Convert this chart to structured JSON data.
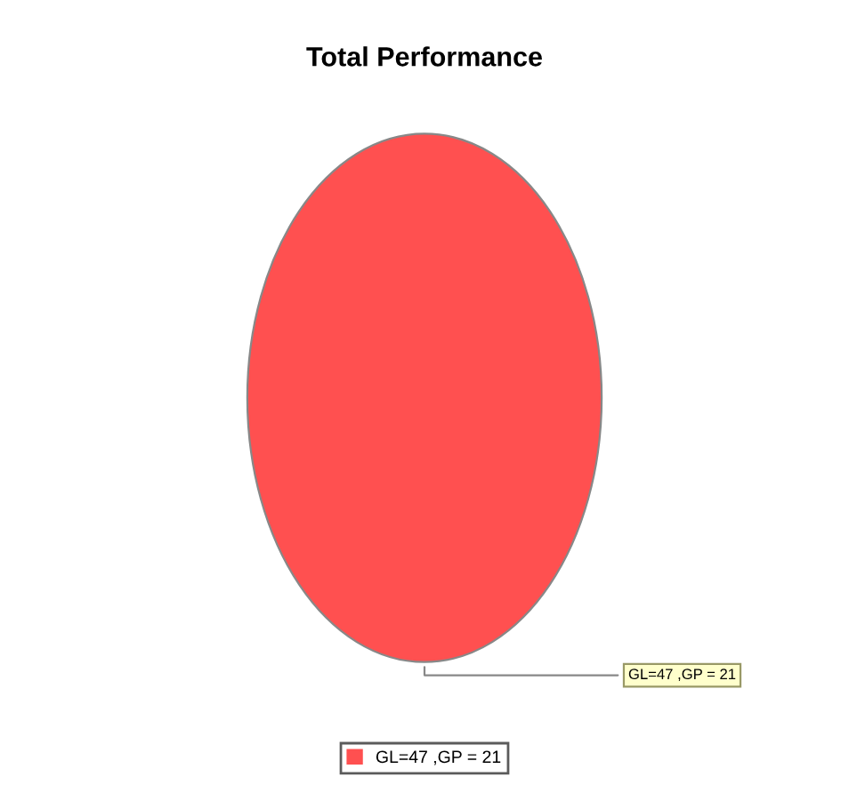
{
  "chart_data": {
    "type": "pie",
    "title": "Total Performance",
    "categories": [
      "GL=47 ,GP = 21"
    ],
    "values": [
      100
    ],
    "colors": [
      "#ff5050"
    ],
    "legend": "bottom"
  }
}
